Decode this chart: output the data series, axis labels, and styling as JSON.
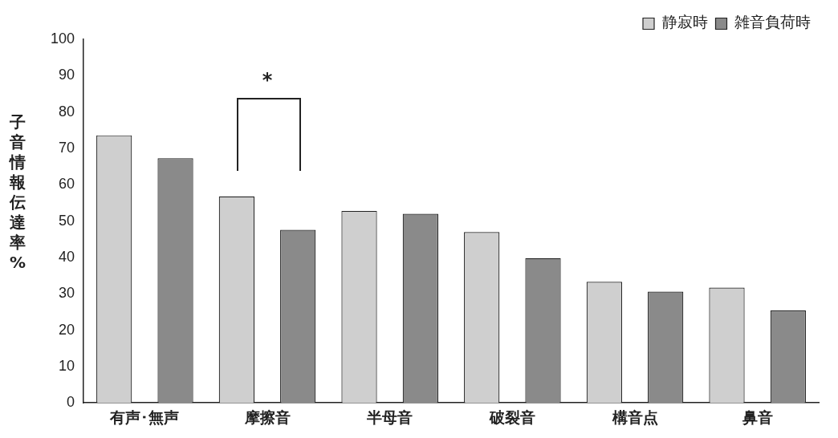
{
  "chart_data": {
    "type": "bar",
    "ylabel": "子音情報伝達率%",
    "categories": [
      "有声･無声",
      "摩擦音",
      "半母音",
      "破裂音",
      "構音点",
      "鼻音"
    ],
    "series": [
      {
        "name": "静寂時",
        "color": "#cfcfcf",
        "values": [
          73.6,
          56.8,
          52.8,
          47,
          33.3,
          31.7
        ]
      },
      {
        "name": "雑音負荷時",
        "color": "#8a8a8a",
        "values": [
          67.3,
          47.6,
          52,
          39.8,
          30.6,
          25.4
        ]
      }
    ],
    "ylim": [
      0,
      100
    ],
    "yticks": [
      0,
      10,
      20,
      30,
      40,
      50,
      60,
      70,
      80,
      90,
      100
    ],
    "grid": false,
    "legend": "top right",
    "annotations": [
      "*"
    ]
  }
}
